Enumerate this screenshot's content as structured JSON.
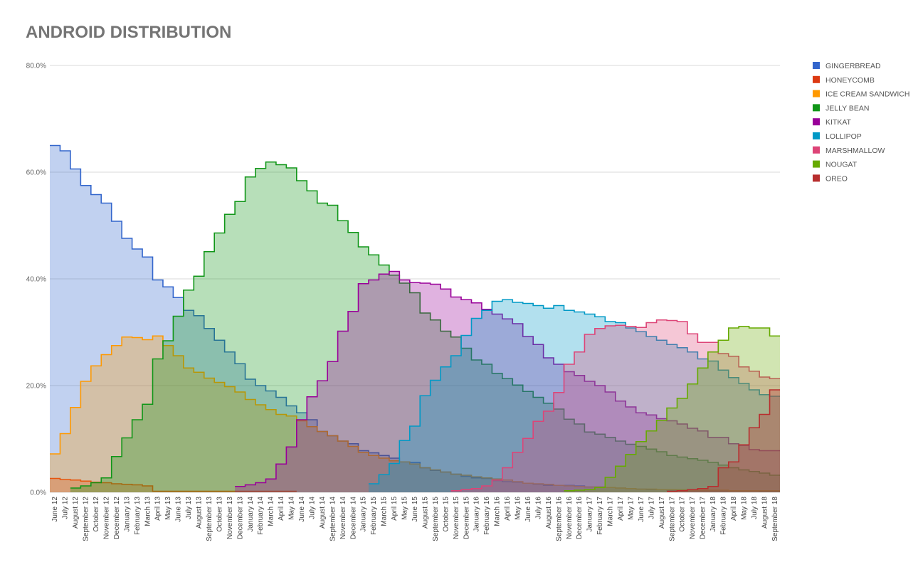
{
  "chart_data": {
    "type": "step-area",
    "title": "ANDROID DISTRIBUTION",
    "categories": [
      "June 12",
      "July 12",
      "August 12",
      "September 12",
      "October 12",
      "November 12",
      "December 12",
      "January 13",
      "February 13",
      "March 13",
      "April 13",
      "May 13",
      "June 13",
      "July 13",
      "August 13",
      "September 13",
      "October 13",
      "November 13",
      "December 13",
      "January 14",
      "February 14",
      "March 14",
      "April 14",
      "May 14",
      "June 14",
      "July 14",
      "August 14",
      "September 14",
      "November 14",
      "December 14",
      "January 15",
      "February 15",
      "March 15",
      "April 15",
      "May 15",
      "June 15",
      "August 15",
      "September 15",
      "October 15",
      "November 15",
      "December 15",
      "January 16",
      "February 16",
      "March 16",
      "April 16",
      "May 16",
      "June 16",
      "July 16",
      "August 16",
      "September 16",
      "November 16",
      "December 16",
      "January 17",
      "February 17",
      "March 17",
      "April 17",
      "May 17",
      "June 17",
      "July 17",
      "August 17",
      "September 17",
      "October 17",
      "November 17",
      "December 17",
      "January 18",
      "February 18",
      "April 18",
      "May 18",
      "July 18",
      "August 18",
      "September 18"
    ],
    "ylim": [
      0,
      80
    ],
    "yticks": [
      {
        "value": 0,
        "label": "0.0%"
      },
      {
        "value": 20,
        "label": "20.0%"
      },
      {
        "value": 40,
        "label": "40.0%"
      },
      {
        "value": 60,
        "label": "60.0%"
      },
      {
        "value": 80,
        "label": "80.0%"
      }
    ],
    "grid": true,
    "legend": "right",
    "series": [
      {
        "name": "GINGERBREAD",
        "color": "#3366cc",
        "values": [
          65,
          64,
          60.6,
          57.5,
          55.8,
          54.2,
          50.8,
          47.6,
          45.6,
          44.1,
          39.8,
          38.5,
          36.5,
          34.1,
          33.1,
          30.7,
          28.5,
          26.3,
          24.1,
          21.2,
          20.0,
          19.0,
          17.8,
          16.2,
          14.9,
          13.6,
          11.4,
          10.6,
          9.6,
          9.1,
          7.8,
          7.4,
          6.9,
          6.4,
          5.7,
          5.6,
          4.6,
          4.1,
          3.8,
          3.4,
          3.0,
          2.7,
          2.6,
          2.2,
          2.0,
          1.9,
          1.7,
          1.5,
          1.3,
          1.3,
          1.3,
          1.2,
          1.0,
          1.0,
          0.9,
          0.8,
          0.7,
          0.6,
          0.5,
          0.5,
          0.4,
          0.4,
          0.3,
          0.3,
          0.3,
          0.3,
          0.3,
          0.3,
          0.3,
          0.2,
          0.2
        ]
      },
      {
        "name": "HONEYCOMB",
        "color": "#dc3912",
        "values": [
          2.6,
          2.4,
          2.3,
          2.1,
          1.9,
          1.8,
          1.6,
          1.5,
          1.4,
          1.2,
          0.2,
          0.2,
          0.2,
          0.2,
          0.2,
          0.2,
          0.2,
          0.2,
          0.2,
          0.2,
          0.2,
          0.2,
          0.2,
          0.2,
          null,
          null,
          null,
          null,
          null,
          null,
          null,
          null,
          null,
          null,
          null,
          null,
          null,
          null,
          null,
          null,
          null,
          null,
          null,
          null,
          null,
          null,
          null,
          null,
          null,
          null,
          null,
          null,
          null,
          null,
          null,
          null,
          null,
          null,
          null,
          null,
          null,
          null,
          null,
          null,
          null,
          null,
          null,
          null,
          null,
          null,
          null
        ]
      },
      {
        "name": "ICE CREAM SANDWICH",
        "color": "#ff9900",
        "values": [
          7.2,
          11,
          15.9,
          20.8,
          23.7,
          25.8,
          27.5,
          29.1,
          29,
          28.6,
          29.3,
          27.5,
          25.6,
          23.3,
          22.5,
          21.4,
          20.6,
          19.8,
          18.8,
          17.4,
          16.4,
          15.5,
          14.6,
          14.3,
          13.4,
          12.3,
          11.4,
          10.6,
          9.6,
          8.6,
          7.5,
          6.9,
          6.4,
          5.9,
          5.7,
          5.3,
          4.6,
          4.2,
          3.8,
          3.4,
          3.2,
          2.9,
          2.7,
          2.5,
          2.3,
          2.0,
          1.7,
          1.6,
          1.5,
          1.3,
          1.2,
          1.1,
          1.0,
          1.0,
          0.9,
          0.8,
          0.7,
          0.6,
          0.6,
          0.5,
          0.5,
          0.5,
          0.4,
          0.4,
          0.4,
          0.4,
          0.3,
          0.3,
          0.3,
          0.3,
          0.3
        ]
      },
      {
        "name": "JELLY BEAN",
        "color": "#109618",
        "values": [
          null,
          null,
          0.8,
          1.2,
          1.8,
          2.7,
          6.7,
          10.2,
          13.6,
          16.5,
          25.0,
          28.4,
          33.0,
          37.9,
          40.5,
          45.1,
          48.6,
          52.1,
          54.5,
          59.1,
          60.7,
          61.9,
          61.4,
          60.8,
          58.4,
          56.5,
          54.2,
          53.8,
          50.9,
          48.7,
          46.0,
          44.5,
          42.6,
          40.7,
          39.2,
          37.4,
          33.6,
          32.3,
          30.2,
          29.1,
          27.0,
          24.8,
          24.0,
          22.3,
          21.3,
          20.1,
          18.9,
          17.8,
          16.7,
          15.6,
          13.7,
          12.8,
          11.3,
          10.9,
          10.3,
          9.6,
          9.0,
          8.6,
          8.1,
          7.6,
          6.9,
          6.6,
          6.3,
          6.0,
          5.6,
          5.1,
          4.6,
          4.2,
          3.9,
          3.6,
          3.2
        ]
      },
      {
        "name": "KITKAT",
        "color": "#990099",
        "values": [
          null,
          null,
          null,
          null,
          null,
          null,
          null,
          null,
          null,
          null,
          null,
          null,
          null,
          null,
          null,
          null,
          null,
          null,
          1.1,
          1.4,
          1.8,
          2.5,
          5.3,
          8.5,
          13.6,
          17.9,
          20.9,
          24.5,
          30.2,
          33.9,
          39.1,
          39.8,
          40.9,
          41.4,
          39.8,
          39.3,
          39.2,
          39.0,
          38.1,
          36.6,
          36.1,
          35.5,
          34.3,
          33.4,
          32.5,
          31.6,
          29.2,
          27.7,
          25.2,
          24.0,
          22.6,
          21.9,
          20.8,
          20.0,
          18.8,
          17.1,
          16.0,
          14.9,
          14.5,
          13.8,
          13.4,
          12.8,
          12.0,
          11.5,
          10.3,
          10.3,
          9.1,
          8.8,
          8.0,
          7.8,
          7.8
        ]
      },
      {
        "name": "LOLLIPOP",
        "color": "#0099c6",
        "values": [
          null,
          null,
          null,
          null,
          null,
          null,
          null,
          null,
          null,
          null,
          null,
          null,
          null,
          null,
          null,
          null,
          null,
          null,
          null,
          null,
          null,
          null,
          null,
          null,
          null,
          null,
          null,
          null,
          null,
          null,
          null,
          1.6,
          3.3,
          5.4,
          9.7,
          12.4,
          18.1,
          21.0,
          23.5,
          25.6,
          29.4,
          32.6,
          34.1,
          35.8,
          36.1,
          35.6,
          35.4,
          35.0,
          34.5,
          35.0,
          34.1,
          33.8,
          33.4,
          32.9,
          32.0,
          31.8,
          30.8,
          30.1,
          29.2,
          28.5,
          27.7,
          27.1,
          26.3,
          25.0,
          24.6,
          22.9,
          21.5,
          20.4,
          19.2,
          18.3,
          18.0
        ]
      },
      {
        "name": "MARSHMALLOW",
        "color": "#dd4477",
        "values": [
          null,
          null,
          null,
          null,
          null,
          null,
          null,
          null,
          null,
          null,
          null,
          null,
          null,
          null,
          null,
          null,
          null,
          null,
          null,
          null,
          null,
          null,
          null,
          null,
          null,
          null,
          null,
          null,
          null,
          null,
          null,
          null,
          null,
          null,
          null,
          null,
          null,
          null,
          null,
          0.3,
          0.5,
          0.7,
          1.2,
          2.3,
          4.6,
          7.5,
          10.1,
          13.3,
          15.2,
          18.7,
          24.0,
          26.3,
          29.6,
          30.7,
          31.2,
          31.3,
          31.1,
          30.9,
          31.8,
          32.3,
          32.2,
          32.0,
          29.7,
          28.1,
          28.1,
          26.0,
          25.5,
          23.5,
          22.7,
          21.6,
          21.3
        ]
      },
      {
        "name": "NOUGAT",
        "color": "#66aa00",
        "values": [
          null,
          null,
          null,
          null,
          null,
          null,
          null,
          null,
          null,
          null,
          null,
          null,
          null,
          null,
          null,
          null,
          null,
          null,
          null,
          null,
          null,
          null,
          null,
          null,
          null,
          null,
          null,
          null,
          null,
          null,
          null,
          null,
          null,
          null,
          null,
          null,
          null,
          null,
          null,
          null,
          null,
          null,
          null,
          null,
          null,
          null,
          null,
          null,
          null,
          null,
          0.3,
          0.4,
          0.5,
          0.9,
          2.8,
          4.9,
          7.1,
          9.5,
          11.5,
          13.5,
          15.8,
          17.6,
          20.3,
          23.3,
          26.3,
          28.5,
          30.8,
          31.1,
          30.8,
          30.8,
          29.3
        ]
      },
      {
        "name": "OREO",
        "color": "#b82e2e",
        "values": [
          null,
          null,
          null,
          null,
          null,
          null,
          null,
          null,
          null,
          null,
          null,
          null,
          null,
          null,
          null,
          null,
          null,
          null,
          null,
          null,
          null,
          null,
          null,
          null,
          null,
          null,
          null,
          null,
          null,
          null,
          null,
          null,
          null,
          null,
          null,
          null,
          null,
          null,
          null,
          null,
          null,
          null,
          null,
          null,
          null,
          null,
          null,
          null,
          null,
          null,
          null,
          null,
          null,
          null,
          null,
          null,
          null,
          null,
          null,
          null,
          0.2,
          0.3,
          0.5,
          0.7,
          1.1,
          4.6,
          5.7,
          8.9,
          12.1,
          14.6,
          19.2
        ]
      }
    ]
  }
}
